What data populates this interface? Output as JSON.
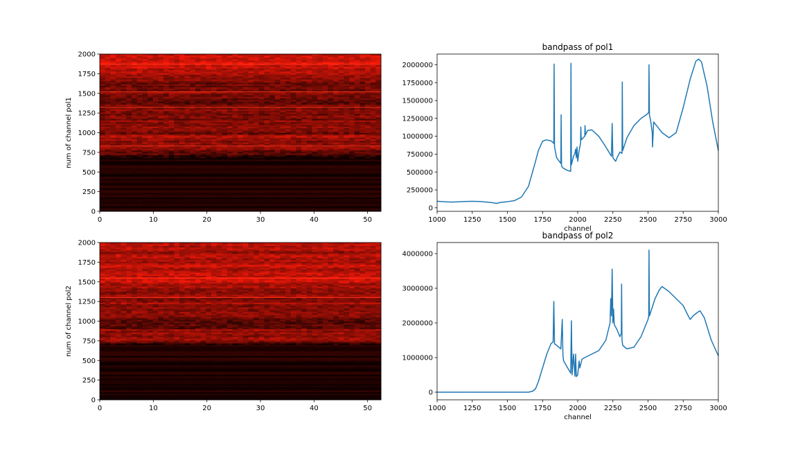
{
  "figure": {
    "background": "#ffffff"
  },
  "chart_data": [
    {
      "type": "heatmap",
      "title": "",
      "xlabel": "",
      "ylabel": "num of channel  pol1",
      "xlim": [
        0,
        52.5
      ],
      "ylim": [
        0,
        2000
      ],
      "xticks": [
        0,
        10,
        20,
        30,
        40,
        50
      ],
      "yticks": [
        0,
        250,
        500,
        750,
        1000,
        1250,
        1500,
        1750,
        2000
      ],
      "colormap": "hot",
      "colors": {
        "low": "#0f0000",
        "high": "#ff1a0a"
      },
      "intensity_profile": {
        "channel": [
          0,
          650,
          700,
          760,
          800,
          830,
          860,
          900,
          950,
          1000,
          1050,
          1100,
          1150,
          1200,
          1250,
          1300,
          1350,
          1400,
          1450,
          1500,
          1550,
          1600,
          1650,
          1700,
          1750,
          1800,
          1850,
          1900,
          1950,
          2000
        ],
        "level": [
          0.03,
          0.05,
          0.15,
          0.35,
          0.55,
          0.6,
          0.5,
          0.45,
          0.65,
          0.3,
          0.45,
          0.55,
          0.5,
          0.45,
          0.35,
          0.5,
          0.35,
          0.4,
          0.5,
          0.55,
          0.5,
          0.45,
          0.4,
          0.5,
          0.55,
          0.7,
          0.8,
          0.85,
          0.8,
          0.75
        ]
      },
      "bright_lines": [
        830,
        1320,
        1520,
        1870
      ]
    },
    {
      "type": "line",
      "title": "bandpass of pol1",
      "xlabel": "channel",
      "ylabel": "",
      "xlim": [
        1000,
        3000
      ],
      "ylim": [
        -50000,
        2150000
      ],
      "xticks": [
        1000,
        1250,
        1500,
        1750,
        2000,
        2250,
        2500,
        2750,
        3000
      ],
      "yticks": [
        0,
        250000,
        500000,
        750000,
        1000000,
        1250000,
        1500000,
        1750000,
        2000000
      ],
      "ytick_labels": [
        "0",
        "250000",
        "500000",
        "750000",
        "1000000",
        "1250000",
        "1500000",
        "1750000",
        "2000000"
      ],
      "color": "#1f77b4",
      "x": [
        1000,
        1050,
        1100,
        1150,
        1200,
        1250,
        1300,
        1350,
        1400,
        1420,
        1450,
        1500,
        1550,
        1600,
        1650,
        1700,
        1720,
        1750,
        1775,
        1800,
        1815,
        1830,
        1832,
        1835,
        1850,
        1880,
        1882,
        1885,
        1900,
        1930,
        1950,
        1952,
        1955,
        1970,
        1980,
        1985,
        1990,
        1995,
        2000,
        2010,
        2020,
        2022,
        2025,
        2050,
        2052,
        2055,
        2070,
        2100,
        2150,
        2200,
        2240,
        2245,
        2250,
        2270,
        2280,
        2300,
        2315,
        2317,
        2320,
        2350,
        2400,
        2450,
        2480,
        2500,
        2505,
        2507,
        2510,
        2520,
        2530,
        2532,
        2540,
        2560,
        2600,
        2650,
        2700,
        2750,
        2800,
        2840,
        2860,
        2880,
        2920,
        2960,
        3000
      ],
      "y": [
        90000,
        85000,
        80000,
        83000,
        88000,
        90000,
        88000,
        80000,
        70000,
        60000,
        75000,
        85000,
        100000,
        150000,
        300000,
        650000,
        800000,
        930000,
        950000,
        940000,
        930000,
        900000,
        2010000,
        850000,
        700000,
        620000,
        1300000,
        580000,
        550000,
        520000,
        510000,
        2020000,
        600000,
        720000,
        760000,
        820000,
        700000,
        850000,
        650000,
        800000,
        900000,
        1130000,
        950000,
        1000000,
        1150000,
        1020000,
        1080000,
        1090000,
        1000000,
        850000,
        720000,
        1180000,
        700000,
        650000,
        700000,
        780000,
        760000,
        1760000,
        800000,
        980000,
        1150000,
        1250000,
        1290000,
        1320000,
        1340000,
        2000000,
        1300000,
        1200000,
        1050000,
        850000,
        1200000,
        1150000,
        1050000,
        980000,
        1050000,
        1400000,
        1800000,
        2050000,
        2080000,
        2040000,
        1700000,
        1200000,
        800000
      ]
    },
    {
      "type": "heatmap",
      "title": "",
      "xlabel": "",
      "ylabel": "num of channel  pol2",
      "xlim": [
        0,
        52.5
      ],
      "ylim": [
        0,
        2000
      ],
      "xticks": [
        0,
        10,
        20,
        30,
        40,
        50
      ],
      "yticks": [
        0,
        250,
        500,
        750,
        1000,
        1250,
        1500,
        1750,
        2000
      ],
      "colormap": "hot",
      "colors": {
        "low": "#0f0000",
        "high": "#ff1a0a"
      },
      "intensity_profile": {
        "channel": [
          0,
          700,
          740,
          780,
          820,
          860,
          900,
          940,
          980,
          1020,
          1060,
          1100,
          1150,
          1200,
          1250,
          1300,
          1350,
          1400,
          1450,
          1500,
          1550,
          1600,
          1650,
          1700,
          1750,
          1800,
          1850,
          1900,
          1950,
          2000
        ],
        "level": [
          0.03,
          0.04,
          0.5,
          0.6,
          0.55,
          0.6,
          0.5,
          0.15,
          0.45,
          0.2,
          0.5,
          0.55,
          0.45,
          0.5,
          0.6,
          0.55,
          0.5,
          0.55,
          0.6,
          0.75,
          0.85,
          0.8,
          0.7,
          0.75,
          0.65,
          0.7,
          0.65,
          0.6,
          0.65,
          0.6
        ]
      },
      "bright_lines": [
        1300,
        1550
      ]
    },
    {
      "type": "line",
      "title": "bandpass of pol2",
      "xlabel": "channel",
      "ylabel": "",
      "xlim": [
        1000,
        3000
      ],
      "ylim": [
        -220000,
        4320000
      ],
      "xticks": [
        1000,
        1250,
        1500,
        1750,
        2000,
        2250,
        2500,
        2750,
        3000
      ],
      "yticks": [
        0,
        1000000,
        2000000,
        3000000,
        4000000
      ],
      "ytick_labels": [
        "0",
        "1000000",
        "2000000",
        "3000000",
        "4000000"
      ],
      "color": "#1f77b4",
      "x": [
        1000,
        1200,
        1400,
        1600,
        1650,
        1680,
        1700,
        1720,
        1750,
        1780,
        1800,
        1810,
        1825,
        1830,
        1835,
        1850,
        1880,
        1890,
        1895,
        1900,
        1950,
        1955,
        1960,
        1970,
        1980,
        1985,
        1990,
        2000,
        2010,
        2015,
        2030,
        2050,
        2100,
        2150,
        2200,
        2230,
        2235,
        2240,
        2245,
        2250,
        2255,
        2260,
        2280,
        2300,
        2310,
        2312,
        2315,
        2320,
        2350,
        2400,
        2450,
        2500,
        2505,
        2507,
        2510,
        2550,
        2580,
        2600,
        2650,
        2700,
        2750,
        2780,
        2800,
        2820,
        2850,
        2870,
        2900,
        2950,
        3000
      ],
      "y": [
        0,
        0,
        0,
        0,
        0,
        30000,
        100000,
        300000,
        700000,
        1100000,
        1300000,
        1400000,
        1450000,
        2620000,
        1400000,
        1350000,
        1250000,
        2100000,
        1050000,
        900000,
        550000,
        2060000,
        500000,
        1100000,
        460000,
        1100000,
        450000,
        500000,
        900000,
        700000,
        950000,
        1000000,
        1100000,
        1200000,
        1500000,
        2000000,
        2700000,
        2200000,
        3550000,
        2000000,
        2400000,
        1950000,
        1800000,
        1600000,
        1700000,
        3120000,
        1500000,
        1350000,
        1250000,
        1300000,
        1600000,
        2100000,
        2200000,
        4100000,
        2200000,
        2700000,
        2950000,
        3050000,
        2900000,
        2700000,
        2500000,
        2250000,
        2100000,
        2200000,
        2300000,
        2350000,
        2150000,
        1500000,
        1050000
      ]
    }
  ]
}
